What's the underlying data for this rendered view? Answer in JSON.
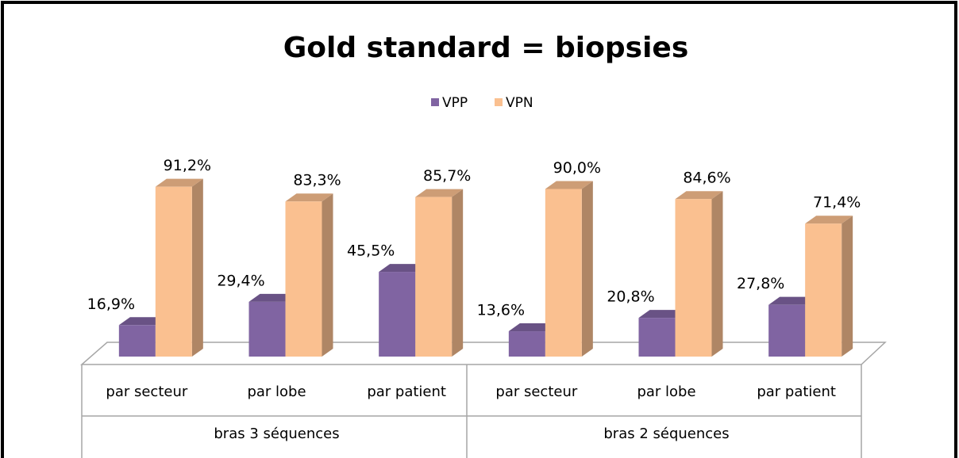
{
  "chart_data": {
    "type": "bar3d",
    "title": "Gold standard = biopsies",
    "categories": [
      "par secteur",
      "par lobe",
      "par patient",
      "par secteur",
      "par lobe",
      "par patient"
    ],
    "group_labels": [
      "bras 3 séquences",
      "bras 2 séquences"
    ],
    "ylim": [
      0,
      100
    ],
    "series": [
      {
        "name": "VPP",
        "color": "#8064a2",
        "values": [
          16.9,
          29.4,
          45.5,
          13.6,
          20.8,
          27.8
        ],
        "value_labels": [
          "16,9%",
          "29,4%",
          "45,5%",
          "13,6%",
          "20,8%",
          "27,8%"
        ]
      },
      {
        "name": "VPN",
        "color": "#fac090",
        "values": [
          91.2,
          83.3,
          85.7,
          90.0,
          84.6,
          71.4
        ],
        "value_labels": [
          "91,2%",
          "83,3%",
          "85,7%",
          "90,0%",
          "84,6%",
          "71,4%"
        ]
      }
    ]
  }
}
